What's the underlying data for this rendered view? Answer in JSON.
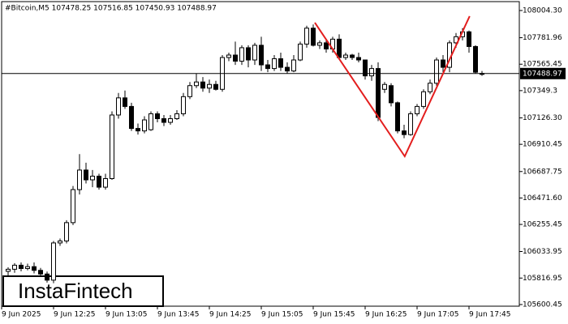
{
  "chart_data": {
    "type": "candlestick",
    "title": "#Bitcoin,M5  107478.25 107516.85 107450.93 107488.97",
    "watermark": "InstaFintech",
    "open": [
      105872,
      105889,
      105922,
      105895,
      105910,
      105880,
      105850,
      105800,
      106104,
      106120,
      106270,
      106540,
      106700,
      106620,
      106650,
      106560,
      106630,
      107150,
      107290,
      107220,
      107040,
      107020,
      107030,
      107160,
      107120,
      107090,
      107120,
      107160,
      107300,
      107390,
      107420,
      107370,
      107400,
      107360,
      107620,
      107640,
      107590,
      107700,
      107600,
      107720,
      107560,
      107530,
      107610,
      107540,
      107510,
      107600,
      107730,
      107860,
      107720,
      107740,
      107690,
      107770,
      107620,
      107640,
      107620,
      107600,
      107470,
      107530,
      107360,
      107390,
      107250,
      107020,
      106990,
      107160,
      107220,
      107340,
      107410,
      107600,
      107540,
      107740,
      107790,
      107830,
      107710,
      107489
    ],
    "high": [
      105905,
      105939,
      105945,
      105935,
      105945,
      105900,
      105870,
      106120,
      106140,
      106290,
      106570,
      106830,
      106760,
      106700,
      106670,
      106670,
      107180,
      107330,
      107350,
      107250,
      107080,
      107140,
      107180,
      107180,
      107150,
      107150,
      107190,
      107330,
      107420,
      107490,
      107460,
      107440,
      107430,
      107640,
      107660,
      107750,
      107720,
      107720,
      107740,
      107790,
      107600,
      107640,
      107660,
      107580,
      107640,
      107750,
      107880,
      107890,
      107760,
      107760,
      107790,
      107810,
      107660,
      107650,
      107660,
      107600,
      107560,
      107580,
      107420,
      107410,
      107260,
      107070,
      107180,
      107240,
      107360,
      107440,
      107620,
      107640,
      107760,
      107820,
      107860,
      107840,
      107720,
      107510
    ],
    "low": [
      105839,
      105860,
      105872,
      105880,
      105855,
      105830,
      105780,
      105775,
      106080,
      106100,
      106250,
      106500,
      106590,
      106560,
      106540,
      106540,
      106620,
      107120,
      107200,
      107020,
      106990,
      107000,
      107020,
      107090,
      107060,
      107070,
      107110,
      107140,
      107280,
      107370,
      107340,
      107330,
      107350,
      107340,
      107590,
      107560,
      107560,
      107540,
      107560,
      107510,
      107500,
      107510,
      107510,
      107490,
      107500,
      107590,
      107700,
      107710,
      107690,
      107660,
      107660,
      107600,
      107600,
      107600,
      107580,
      107440,
      107430,
      107100,
      107330,
      107220,
      107000,
      106960,
      106980,
      107140,
      107200,
      107320,
      107390,
      107500,
      107500,
      107700,
      107760,
      107660,
      107490,
      107470
    ],
    "close": [
      105889,
      105922,
      105895,
      105910,
      105880,
      105850,
      105800,
      106104,
      106120,
      106270,
      106540,
      106700,
      106620,
      106650,
      106560,
      106630,
      107150,
      107290,
      107220,
      107040,
      107020,
      107110,
      107160,
      107120,
      107090,
      107120,
      107160,
      107300,
      107390,
      107420,
      107370,
      107400,
      107360,
      107620,
      107640,
      107590,
      107700,
      107600,
      107720,
      107560,
      107530,
      107610,
      107540,
      107510,
      107600,
      107730,
      107860,
      107720,
      107740,
      107690,
      107770,
      107620,
      107640,
      107620,
      107600,
      107470,
      107530,
      107130,
      107400,
      107250,
      107020,
      106990,
      107160,
      107220,
      107340,
      107410,
      107600,
      107540,
      107740,
      107790,
      107830,
      107710,
      107500,
      107489
    ],
    "last_price": 107488.97,
    "pattern": {
      "color": "#e31e1e",
      "x": [
        47.25,
        61.1,
        71.1
      ],
      "y": [
        107905,
        106812,
        107958
      ]
    },
    "xlim": [
      -1,
      78.75
    ],
    "ylim": [
      105587,
      108077
    ],
    "xticks": [
      {
        "value": -1,
        "label": "9 Jun 2025"
      },
      {
        "value": 7,
        "label": "9 Jun 12:25"
      },
      {
        "value": 15,
        "label": "9 Jun 13:05"
      },
      {
        "value": 23,
        "label": "9 Jun 13:45"
      },
      {
        "value": 31,
        "label": "9 Jun 14:25"
      },
      {
        "value": 39,
        "label": "9 Jun 15:05"
      },
      {
        "value": 47,
        "label": "9 Jun 15:45"
      },
      {
        "value": 55,
        "label": "9 Jun 16:25"
      },
      {
        "value": 63,
        "label": "9 Jun 17:05"
      },
      {
        "value": 71,
        "label": "9 Jun 17:45"
      }
    ],
    "yticks": [
      {
        "value": 108004.3,
        "label": "108004.30"
      },
      {
        "value": 107781.96,
        "label": "107781.96"
      },
      {
        "value": 107565.45,
        "label": "107565.45"
      },
      107349.3,
      {
        "value": 107126.3,
        "label": "107126.30"
      },
      {
        "value": 106910.45,
        "label": "106910.45"
      },
      {
        "value": 106687.75,
        "label": "106687.75"
      },
      {
        "value": 106471.6,
        "label": "106471.60"
      },
      {
        "value": 106255.45,
        "label": "106255.45"
      },
      {
        "value": 106033.95,
        "label": "106033.95"
      },
      {
        "value": 105816.95,
        "label": "105816.95"
      },
      {
        "value": 105600.45,
        "label": "105600.45"
      }
    ]
  }
}
